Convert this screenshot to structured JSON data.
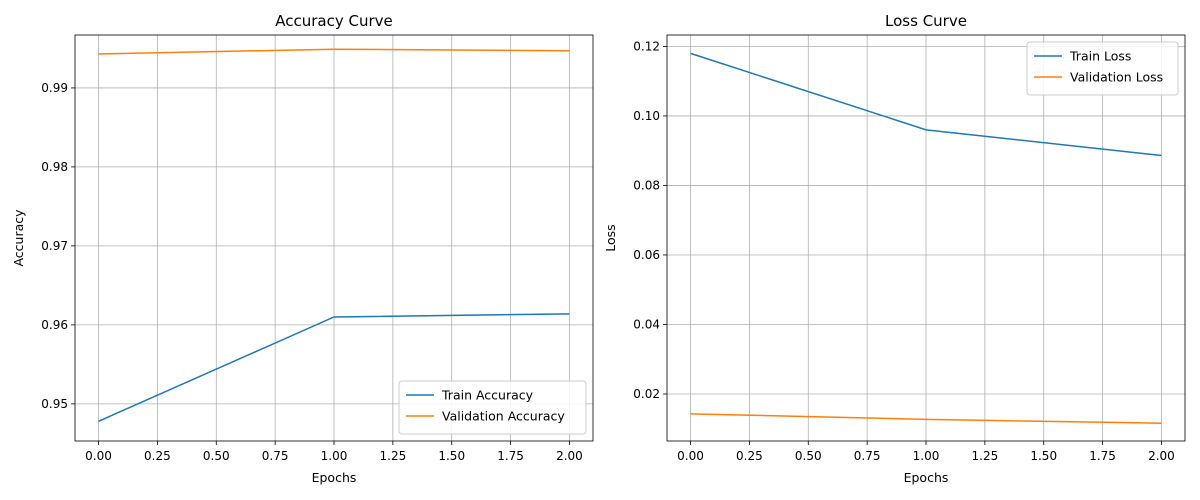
{
  "chart_data": [
    {
      "type": "line",
      "title": "Accuracy Curve",
      "xlabel": "Epochs",
      "ylabel": "Accuracy",
      "x": [
        0,
        1,
        2
      ],
      "xlim": [
        -0.1,
        2.1
      ],
      "ylim": [
        0.9453,
        0.9967
      ],
      "xticks": [
        0,
        0.25,
        0.5,
        0.75,
        1,
        1.25,
        1.5,
        1.75,
        2
      ],
      "xtick_labels": [
        "0.00",
        "0.25",
        "0.50",
        "0.75",
        "1.00",
        "1.25",
        "1.50",
        "1.75",
        "2.00"
      ],
      "yticks": [
        0.95,
        0.96,
        0.97,
        0.98,
        0.99
      ],
      "ytick_labels": [
        "0.95",
        "0.96",
        "0.97",
        "0.98",
        "0.99"
      ],
      "grid": true,
      "legend_position": "lower-right",
      "series": [
        {
          "name": "Train Accuracy",
          "values": [
            0.9478,
            0.961,
            0.9614
          ],
          "color": "#1f77b4"
        },
        {
          "name": "Validation Accuracy",
          "values": [
            0.9943,
            0.9949,
            0.9947
          ],
          "color": "#ff7f0e"
        }
      ]
    },
    {
      "type": "line",
      "title": "Loss Curve",
      "xlabel": "Epochs",
      "ylabel": "Loss",
      "x": [
        0,
        1,
        2
      ],
      "xlim": [
        -0.1,
        2.1
      ],
      "ylim": [
        0.00648,
        0.12328
      ],
      "xticks": [
        0,
        0.25,
        0.5,
        0.75,
        1,
        1.25,
        1.5,
        1.75,
        2
      ],
      "xtick_labels": [
        "0.00",
        "0.25",
        "0.50",
        "0.75",
        "1.00",
        "1.25",
        "1.50",
        "1.75",
        "2.00"
      ],
      "yticks": [
        0.02,
        0.04,
        0.06,
        0.08,
        0.1,
        0.12
      ],
      "ytick_labels": [
        "0.02",
        "0.04",
        "0.06",
        "0.08",
        "0.10",
        "0.12"
      ],
      "grid": true,
      "legend_position": "upper-right",
      "series": [
        {
          "name": "Train Loss",
          "values": [
            0.118,
            0.096,
            0.0886
          ],
          "color": "#1f77b4"
        },
        {
          "name": "Validation Loss",
          "values": [
            0.0143,
            0.0127,
            0.0116
          ],
          "color": "#ff7f0e"
        }
      ]
    }
  ]
}
